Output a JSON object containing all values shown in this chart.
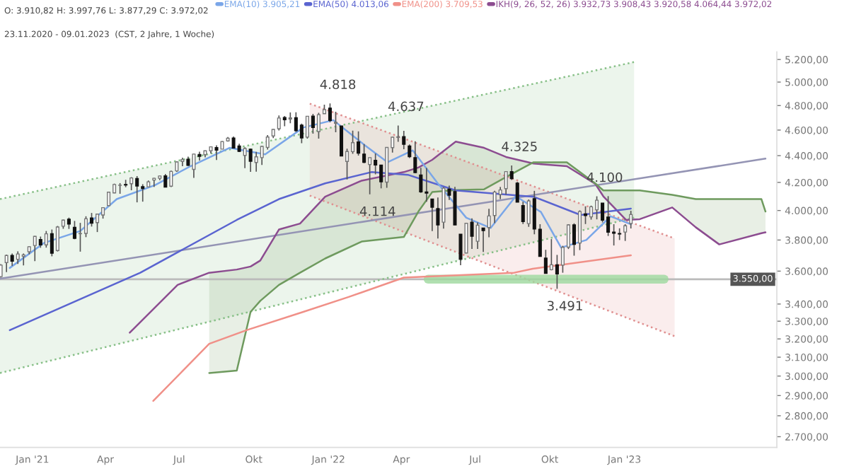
{
  "chart_data": {
    "type": "candlestick",
    "annotations": [
      "O: 3.910,82 H: 3.997,76 L: 3.877,29 C: 3.972,02",
      "23.11.2020 - 09.01.2023  (CST, 2 Jahre, 1 Woche)",
      {
        "text": "4.818",
        "x": "2022-01-03",
        "y": 4818
      },
      {
        "text": "4.114",
        "x": "2022-02-21",
        "y": 4114
      },
      {
        "text": "4.637",
        "x": "2022-03-28",
        "y": 4637
      },
      {
        "text": "4.325",
        "x": "2022-08-15",
        "y": 4325
      },
      {
        "text": "3.491",
        "x": "2022-10-10",
        "y": 3491
      },
      {
        "text": "4.100",
        "x": "2022-11-28",
        "y": 4100
      }
    ],
    "x": [
      "2020-11-23",
      "2020-11-30",
      "2020-12-07",
      "2020-12-14",
      "2020-12-21",
      "2020-12-28",
      "2021-01-04",
      "2021-01-11",
      "2021-01-18",
      "2021-01-25",
      "2021-02-01",
      "2021-02-08",
      "2021-02-15",
      "2021-02-22",
      "2021-03-01",
      "2021-03-08",
      "2021-03-15",
      "2021-03-22",
      "2021-03-29",
      "2021-04-05",
      "2021-04-12",
      "2021-04-19",
      "2021-04-26",
      "2021-05-03",
      "2021-05-10",
      "2021-05-17",
      "2021-05-24",
      "2021-05-31",
      "2021-06-07",
      "2021-06-14",
      "2021-06-21",
      "2021-06-28",
      "2021-07-05",
      "2021-07-12",
      "2021-07-19",
      "2021-07-26",
      "2021-08-02",
      "2021-08-09",
      "2021-08-16",
      "2021-08-23",
      "2021-08-30",
      "2021-09-06",
      "2021-09-13",
      "2021-09-20",
      "2021-09-27",
      "2021-10-04",
      "2021-10-11",
      "2021-10-18",
      "2021-10-25",
      "2021-11-01",
      "2021-11-08",
      "2021-11-15",
      "2021-11-22",
      "2021-11-29",
      "2021-12-06",
      "2021-12-13",
      "2021-12-20",
      "2021-12-27",
      "2022-01-03",
      "2022-01-10",
      "2022-01-17",
      "2022-01-24",
      "2022-01-31",
      "2022-02-07",
      "2022-02-14",
      "2022-02-21",
      "2022-02-28",
      "2022-03-07",
      "2022-03-14",
      "2022-03-21",
      "2022-03-28",
      "2022-04-04",
      "2022-04-11",
      "2022-04-18",
      "2022-04-25",
      "2022-05-02",
      "2022-05-09",
      "2022-05-16",
      "2022-05-23",
      "2022-05-30",
      "2022-06-06",
      "2022-06-13",
      "2022-06-20",
      "2022-06-27",
      "2022-07-04",
      "2022-07-11",
      "2022-07-18",
      "2022-07-25",
      "2022-08-01",
      "2022-08-08",
      "2022-08-15",
      "2022-08-22",
      "2022-08-29",
      "2022-09-05",
      "2022-09-12",
      "2022-09-19",
      "2022-09-26",
      "2022-10-03",
      "2022-10-10",
      "2022-10-17",
      "2022-10-24",
      "2022-10-31",
      "2022-11-07",
      "2022-11-14",
      "2022-11-21",
      "2022-11-28",
      "2022-12-05",
      "2022-12-12",
      "2022-12-19",
      "2022-12-26",
      "2023-01-02",
      "2023-01-09"
    ],
    "ohlc": [
      [
        3566,
        3644,
        3560,
        3638
      ],
      [
        3654,
        3705,
        3594,
        3699
      ],
      [
        3699,
        3712,
        3633,
        3663
      ],
      [
        3675,
        3726,
        3645,
        3709
      ],
      [
        3694,
        3712,
        3636,
        3703
      ],
      [
        3723,
        3760,
        3707,
        3756
      ],
      [
        3764,
        3827,
        3663,
        3824
      ],
      [
        3803,
        3823,
        3749,
        3768
      ],
      [
        3768,
        3860,
        3750,
        3841
      ],
      [
        3842,
        3870,
        3694,
        3714
      ],
      [
        3731,
        3894,
        3725,
        3887
      ],
      [
        3892,
        3937,
        3875,
        3934
      ],
      [
        3940,
        3951,
        3874,
        3907
      ],
      [
        3885,
        3928,
        3805,
        3811
      ],
      [
        3842,
        3915,
        3724,
        3842
      ],
      [
        3844,
        3960,
        3819,
        3943
      ],
      [
        3949,
        3983,
        3890,
        3913
      ],
      [
        3917,
        3978,
        3853,
        3975
      ],
      [
        3969,
        4020,
        3944,
        4020
      ],
      [
        4034,
        4130,
        4034,
        4129
      ],
      [
        4124,
        4191,
        4122,
        4185
      ],
      [
        4179,
        4195,
        4118,
        4180
      ],
      [
        4185,
        4219,
        4165,
        4181
      ],
      [
        4191,
        4238,
        4143,
        4233
      ],
      [
        4228,
        4246,
        4057,
        4174
      ],
      [
        4169,
        4187,
        4062,
        4156
      ],
      [
        4168,
        4214,
        4168,
        4204
      ],
      [
        4217,
        4234,
        4167,
        4230
      ],
      [
        4230,
        4250,
        4216,
        4247
      ],
      [
        4248,
        4262,
        4165,
        4166
      ],
      [
        4173,
        4287,
        4166,
        4281
      ],
      [
        4285,
        4356,
        4278,
        4352
      ],
      [
        4356,
        4384,
        4320,
        4370
      ],
      [
        4373,
        4393,
        4321,
        4327
      ],
      [
        4296,
        4415,
        4233,
        4412
      ],
      [
        4409,
        4430,
        4363,
        4395
      ],
      [
        4407,
        4440,
        4387,
        4437
      ],
      [
        4437,
        4469,
        4417,
        4468
      ],
      [
        4462,
        4480,
        4367,
        4442
      ],
      [
        4450,
        4513,
        4450,
        4509
      ],
      [
        4514,
        4545,
        4508,
        4535
      ],
      [
        4536,
        4549,
        4456,
        4459
      ],
      [
        4474,
        4492,
        4427,
        4433
      ],
      [
        4402,
        4465,
        4306,
        4455
      ],
      [
        4450,
        4455,
        4278,
        4357
      ],
      [
        4348,
        4429,
        4279,
        4391
      ],
      [
        4385,
        4475,
        4329,
        4471
      ],
      [
        4464,
        4560,
        4447,
        4545
      ],
      [
        4553,
        4608,
        4537,
        4605
      ],
      [
        4611,
        4718,
        4596,
        4697
      ],
      [
        4701,
        4714,
        4630,
        4683
      ],
      [
        4689,
        4743,
        4655,
        4698
      ],
      [
        4700,
        4744,
        4585,
        4595
      ],
      [
        4640,
        4652,
        4496,
        4538
      ],
      [
        4544,
        4713,
        4532,
        4712
      ],
      [
        4713,
        4731,
        4572,
        4620
      ],
      [
        4588,
        4740,
        4532,
        4725
      ],
      [
        4733,
        4808,
        4733,
        4766
      ],
      [
        4779,
        4818,
        4662,
        4677
      ],
      [
        4655,
        4749,
        4582,
        4662
      ],
      [
        4632,
        4632,
        4395,
        4398
      ],
      [
        4356,
        4453,
        4222,
        4432
      ],
      [
        4431,
        4595,
        4414,
        4500
      ],
      [
        4506,
        4590,
        4401,
        4419
      ],
      [
        4412,
        4489,
        4343,
        4349
      ],
      [
        4333,
        4385,
        4114,
        4385
      ],
      [
        4364,
        4417,
        4259,
        4329
      ],
      [
        4328,
        4329,
        4157,
        4204
      ],
      [
        4202,
        4465,
        4161,
        4463
      ],
      [
        4462,
        4546,
        4424,
        4543
      ],
      [
        4542,
        4637,
        4507,
        4546
      ],
      [
        4548,
        4594,
        4450,
        4488
      ],
      [
        4474,
        4486,
        4381,
        4392
      ],
      [
        4385,
        4512,
        4267,
        4272
      ],
      [
        4255,
        4308,
        4124,
        4132
      ],
      [
        4131,
        4307,
        4062,
        4123
      ],
      [
        4081,
        4082,
        3859,
        4023
      ],
      [
        4013,
        4091,
        3810,
        3901
      ],
      [
        3920,
        4166,
        3876,
        4158
      ],
      [
        4151,
        4177,
        4074,
        4108
      ],
      [
        4134,
        4168,
        3900,
        3901
      ],
      [
        3838,
        3838,
        3637,
        3675
      ],
      [
        3715,
        3914,
        3715,
        3912
      ],
      [
        3920,
        3946,
        3742,
        3825
      ],
      [
        3792,
        3918,
        3742,
        3899
      ],
      [
        3880,
        3880,
        3722,
        3863
      ],
      [
        3883,
        4012,
        3818,
        3962
      ],
      [
        3965,
        4140,
        3913,
        4130
      ],
      [
        4113,
        4167,
        4080,
        4145
      ],
      [
        4155,
        4280,
        4112,
        4280
      ],
      [
        4279,
        4325,
        4218,
        4228
      ],
      [
        4195,
        4204,
        4058,
        4058
      ],
      [
        4034,
        4062,
        3907,
        3924
      ],
      [
        3910,
        4077,
        3888,
        4067
      ],
      [
        4083,
        4139,
        3838,
        3873
      ],
      [
        3872,
        3906,
        3693,
        3693
      ],
      [
        3682,
        3736,
        3585,
        3586
      ],
      [
        3609,
        3806,
        3605,
        3640
      ],
      [
        3640,
        3703,
        3491,
        3583
      ],
      [
        3638,
        3762,
        3590,
        3752
      ],
      [
        3753,
        3906,
        3741,
        3901
      ],
      [
        3901,
        3912,
        3698,
        3771
      ],
      [
        3780,
        4001,
        3734,
        3993
      ],
      [
        3977,
        4029,
        3907,
        3965
      ],
      [
        3956,
        4034,
        3937,
        4026
      ],
      [
        4005,
        4100,
        3939,
        4072
      ],
      [
        4052,
        4052,
        3918,
        3934
      ],
      [
        3954,
        4101,
        3827,
        3852
      ],
      [
        3853,
        3906,
        3764,
        3845
      ],
      [
        3843,
        3878,
        3800,
        3840
      ],
      [
        3853,
        3906,
        3794,
        3895
      ],
      [
        3911,
        3998,
        3877,
        3972
      ]
    ],
    "series": [
      {
        "type": "line",
        "color": "#88c088",
        "line_style": "dotted",
        "x": [
          "2020-11-22",
          "2023-01-13"
        ],
        "values": [
          4080,
          5177
        ],
        "lower": [
          3016,
          3951
        ],
        "upper": [
          4080,
          5177
        ]
      },
      {
        "type": "line",
        "color": "#88c088",
        "line_style": "dotted",
        "x": [
          "2020-11-22",
          "2023-01-13"
        ],
        "values": [
          3016,
          3951
        ]
      },
      {
        "type": "line",
        "color": "#e09090",
        "line_style": "dotted",
        "x": [
          "2021-12-09",
          "2023-03-04"
        ],
        "values": [
          4816,
          3810
        ],
        "lower": [
          4105,
          3215
        ],
        "upper": [
          4816,
          3810
        ]
      },
      {
        "type": "line",
        "color": "#e09090",
        "line_style": "dotted",
        "x": [
          "2021-12-09",
          "2023-03-04"
        ],
        "values": [
          4105,
          3215
        ]
      },
      {
        "type": "line",
        "color": "#9494b4",
        "x": [
          "2020-11-22",
          "2023-06-24"
        ],
        "values": [
          3553,
          4377
        ]
      },
      {
        "type": "line",
        "color": "#9ed89e",
        "x": [
          "2022-05-04",
          "2023-02-19"
        ],
        "values": [
          3550,
          3550
        ]
      },
      {
        "type": "line",
        "name": "IKH(9, 26, 52, 26) 3.932,73 3.908,43 3.920,58 4.064,44 3.972,02",
        "color": "#8c4c90",
        "x": [
          "2021-05-01",
          "2021-06-29",
          "2021-08-07",
          "2021-09-10",
          "2021-09-27",
          "2021-10-09",
          "2021-11-01",
          "2021-11-27",
          "2021-12-28",
          "2022-02-11",
          "2022-04-04",
          "2022-04-22",
          "2022-05-09",
          "2022-06-07",
          "2022-07-12",
          "2022-08-08",
          "2022-09-11",
          "2022-10-22",
          "2022-11-26",
          "2022-12-06",
          "2023-01-03",
          "2023-01-20",
          "2023-03-01",
          "2023-03-30",
          "2023-04-28",
          "2023-06-19",
          "2023-06-24"
        ],
        "values": [
          3235,
          3515,
          3590,
          3610,
          3629,
          3667,
          3870,
          3910,
          4097,
          4213,
          4276,
          4310,
          4368,
          4509,
          4460,
          4390,
          4340,
          4320,
          4190,
          4100,
          3935,
          3940,
          4021,
          3885,
          3771,
          3845,
          3851
        ]
      },
      {
        "type": "line",
        "color": "#6e9a5e",
        "x": [
          "2021-08-07",
          "2021-09-10",
          "2021-09-27",
          "2021-10-09",
          "2021-11-01",
          "2021-11-27",
          "2021-12-28",
          "2022-02-11",
          "2022-04-04",
          "2022-04-22",
          "2022-05-09",
          "2022-06-07",
          "2022-07-12",
          "2022-08-08",
          "2022-09-11",
          "2022-10-22",
          "2022-11-26",
          "2022-12-06",
          "2023-01-03",
          "2023-01-20",
          "2023-03-01",
          "2023-03-30",
          "2023-04-28",
          "2023-06-19",
          "2023-06-24"
        ],
        "values": [
          3016,
          3029,
          3354,
          3419,
          3515,
          3590,
          3680,
          3790,
          3820,
          3993,
          4130,
          4145,
          4150,
          4239,
          4350,
          4350,
          4193,
          4142,
          4142,
          4142,
          4110,
          4080,
          4080,
          4080,
          3993
        ],
        "lower": [
          3590,
          3610,
          3629,
          3667,
          3870,
          3910,
          4097,
          4213,
          4276,
          4310,
          4368,
          4509,
          4460,
          4390,
          4340,
          4320,
          4190,
          4100,
          3935,
          3940,
          4021,
          3885,
          3771,
          3845,
          3851
        ],
        "upper": [
          3016,
          3029,
          3354,
          3419,
          3515,
          3590,
          3680,
          3790,
          3820,
          3993,
          4130,
          4145,
          4150,
          4239,
          4350,
          4350,
          4193,
          4142,
          4142,
          4142,
          4110,
          4080,
          4080,
          4080,
          3993
        ]
      },
      {
        "type": "line",
        "name": "EMA(200) 3.709,53",
        "color": "#f09088",
        "x": [
          "2021-05-30",
          "2021-08-07",
          "2021-09-22",
          "2021-12-01",
          "2022-01-26",
          "2022-04-04",
          "2022-08-18",
          "2022-09-10",
          "2023-01-09"
        ],
        "values": [
          2873,
          3173,
          3249,
          3354,
          3442,
          3560,
          3590,
          3615,
          3700
        ]
      },
      {
        "type": "line",
        "name": "EMA(50) 4.013,06",
        "color": "#5a64d0",
        "x": [
          "2020-12-04",
          "2021-05-14",
          "2021-09-10",
          "2021-11-01",
          "2021-12-28",
          "2022-02-23",
          "2022-04-09",
          "2022-06-07",
          "2022-09-11",
          "2022-11-08",
          "2023-01-09"
        ],
        "values": [
          3249,
          3590,
          3935,
          4080,
          4193,
          4276,
          4256,
          4142,
          4097,
          3969,
          4013
        ]
      },
      {
        "type": "line",
        "name": "EMA(10) 3.905,21",
        "color": "#7aa6e8",
        "x": [
          "2020-12-04",
          "2021-01-15",
          "2021-03-01",
          "2021-04-15",
          "2021-06-01",
          "2021-07-15",
          "2021-09-01",
          "2021-10-15",
          "2021-12-01",
          "2022-01-07",
          "2022-02-15",
          "2022-03-15",
          "2022-04-15",
          "2022-05-15",
          "2022-06-20",
          "2022-07-20",
          "2022-08-20",
          "2022-09-20",
          "2022-10-15",
          "2022-11-15",
          "2022-12-15",
          "2023-01-09"
        ],
        "values": [
          3620,
          3780,
          3860,
          4080,
          4180,
          4320,
          4460,
          4410,
          4620,
          4680,
          4480,
          4350,
          4440,
          4200,
          3950,
          3880,
          4100,
          3990,
          3750,
          3800,
          3960,
          3905
        ]
      }
    ],
    "ref_lines": [
      {
        "axis": "y",
        "value": 3550,
        "label": "3.550,00",
        "color": "#bbbbbb"
      }
    ],
    "xlim": [
      "2020-11-22",
      "2023-07-08"
    ],
    "xticks": [
      {
        "value": "2021-01-01",
        "label": "Jan '21"
      },
      {
        "value": "2021-04-01",
        "label": "Apr"
      },
      {
        "value": "2021-07-01",
        "label": "Jul"
      },
      {
        "value": "2021-10-01",
        "label": "Okt"
      },
      {
        "value": "2022-01-01",
        "label": "Jan '22"
      },
      {
        "value": "2022-04-01",
        "label": "Apr"
      },
      {
        "value": "2022-07-01",
        "label": "Jul"
      },
      {
        "value": "2022-10-01",
        "label": "Okt"
      },
      {
        "value": "2023-01-01",
        "label": "Jan '23"
      }
    ],
    "log": true,
    "ylim": [
      2650,
      5270
    ],
    "yticks": [
      {
        "value": 2700,
        "label": "2.700,00"
      },
      {
        "value": 2800,
        "label": "2.800,00"
      },
      {
        "value": 2900,
        "label": "2.900,00"
      },
      {
        "value": 3000,
        "label": "3.000,00"
      },
      {
        "value": 3100,
        "label": "3.100,00"
      },
      {
        "value": 3200,
        "label": "3.200,00"
      },
      {
        "value": 3300,
        "label": "3.300,00"
      },
      {
        "value": 3400,
        "label": "3.400,00"
      },
      {
        "value": 3600,
        "label": "3.600,00"
      },
      {
        "value": 3800,
        "label": "3.800,00"
      },
      {
        "value": 4000,
        "label": "4.000,00"
      },
      {
        "value": 4200,
        "label": "4.200,00"
      },
      {
        "value": 4400,
        "label": "4.400,00"
      },
      {
        "value": 4600,
        "label": "4.600,00"
      },
      {
        "value": 4800,
        "label": "4.800,00"
      },
      {
        "value": 5000,
        "label": "5.000,00"
      },
      {
        "value": 5200,
        "label": "5.200,00"
      }
    ],
    "legend": "top"
  }
}
